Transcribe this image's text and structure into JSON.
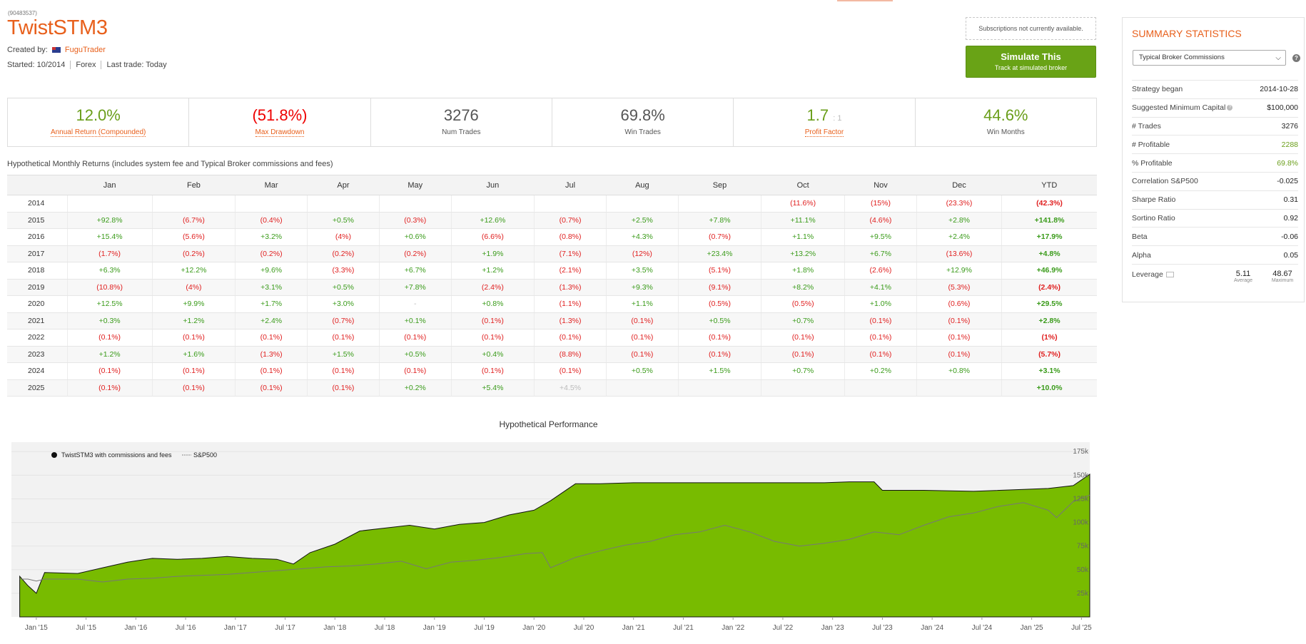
{
  "system": {
    "id": "(90483537)",
    "title": "TwistSTM3",
    "created_by_label": "Created by:",
    "creator": "FuguTrader",
    "started": "Started: 10/2014",
    "market": "Forex",
    "last_trade": "Last trade: Today"
  },
  "actions": {
    "subscriptions_note": "Subscriptions not currently available.",
    "simulate_label": "Simulate This",
    "simulate_sub": "Track at simulated broker"
  },
  "stats": [
    {
      "value": "12.0%",
      "label": "Annual Return (Compounded)",
      "color": "green",
      "link": true
    },
    {
      "value": "(51.8%)",
      "label": "Max Drawdown",
      "color": "red",
      "link": true
    },
    {
      "value": "3276",
      "label": "Num Trades",
      "color": "grey",
      "link": false
    },
    {
      "value": "69.8%",
      "label": "Win Trades",
      "color": "grey",
      "link": false
    },
    {
      "value": "1.7",
      "suffix": ": 1",
      "label": "Profit Factor",
      "color": "green",
      "link": true
    },
    {
      "value": "44.6%",
      "label": "Win Months",
      "color": "green",
      "link": false
    }
  ],
  "monthly": {
    "caption": "Hypothetical Monthly Returns (includes system fee and Typical Broker commissions and fees)",
    "headers": [
      "",
      "Jan",
      "Feb",
      "Mar",
      "Apr",
      "May",
      "Jun",
      "Jul",
      "Aug",
      "Sep",
      "Oct",
      "Nov",
      "Dec",
      "YTD"
    ],
    "rows": [
      [
        "2014",
        "",
        "",
        "",
        "",
        "",
        "",
        "",
        "",
        "",
        "(11.6%)",
        "(15%)",
        "(23.3%)",
        "(42.3%)"
      ],
      [
        "2015",
        "+92.8%",
        "(6.7%)",
        "(0.4%)",
        "+0.5%",
        "(0.3%)",
        "+12.6%",
        "(0.7%)",
        "+2.5%",
        "+7.8%",
        "+11.1%",
        "(4.6%)",
        "+2.8%",
        "+141.8%"
      ],
      [
        "2016",
        "+15.4%",
        "(5.6%)",
        "+3.2%",
        "(4%)",
        "+0.6%",
        "(6.6%)",
        "(0.8%)",
        "+4.3%",
        "(0.7%)",
        "+1.1%",
        "+9.5%",
        "+2.4%",
        "+17.9%"
      ],
      [
        "2017",
        "(1.7%)",
        "(0.2%)",
        "(0.2%)",
        "(0.2%)",
        "(0.2%)",
        "+1.9%",
        "(7.1%)",
        "(12%)",
        "+23.4%",
        "+13.2%",
        "+6.7%",
        "(13.6%)",
        "+4.8%"
      ],
      [
        "2018",
        "+6.3%",
        "+12.2%",
        "+9.6%",
        "(3.3%)",
        "+6.7%",
        "+1.2%",
        "(2.1%)",
        "+3.5%",
        "(5.1%)",
        "+1.8%",
        "(2.6%)",
        "+12.9%",
        "+46.9%"
      ],
      [
        "2019",
        "(10.8%)",
        "(4%)",
        "+3.1%",
        "+0.5%",
        "+7.8%",
        "(2.4%)",
        "(1.3%)",
        "+9.3%",
        "(9.1%)",
        "+8.2%",
        "+4.1%",
        "(5.3%)",
        "(2.4%)"
      ],
      [
        "2020",
        "+12.5%",
        "+9.9%",
        "+1.7%",
        "+3.0%",
        "-",
        "+0.8%",
        "(1.1%)",
        "+1.1%",
        "(0.5%)",
        "(0.5%)",
        "+1.0%",
        "(0.6%)",
        "+29.5%"
      ],
      [
        "2021",
        "+0.3%",
        "+1.2%",
        "+2.4%",
        "(0.7%)",
        "+0.1%",
        "(0.1%)",
        "(1.3%)",
        "(0.1%)",
        "+0.5%",
        "+0.7%",
        "(0.1%)",
        "(0.1%)",
        "+2.8%"
      ],
      [
        "2022",
        "(0.1%)",
        "(0.1%)",
        "(0.1%)",
        "(0.1%)",
        "(0.1%)",
        "(0.1%)",
        "(0.1%)",
        "(0.1%)",
        "(0.1%)",
        "(0.1%)",
        "(0.1%)",
        "(0.1%)",
        "(1%)"
      ],
      [
        "2023",
        "+1.2%",
        "+1.6%",
        "(1.3%)",
        "+1.5%",
        "+0.5%",
        "+0.4%",
        "(8.8%)",
        "(0.1%)",
        "(0.1%)",
        "(0.1%)",
        "(0.1%)",
        "(0.1%)",
        "(5.7%)"
      ],
      [
        "2024",
        "(0.1%)",
        "(0.1%)",
        "(0.1%)",
        "(0.1%)",
        "(0.1%)",
        "(0.1%)",
        "(0.1%)",
        "+0.5%",
        "+1.5%",
        "+0.7%",
        "+0.2%",
        "+0.8%",
        "+3.1%"
      ],
      [
        "2025",
        "(0.1%)",
        "(0.1%)",
        "(0.1%)",
        "(0.1%)",
        "+0.2%",
        "+5.4%",
        "+4.5%",
        "",
        "",
        "",
        "",
        "",
        "+10.0%"
      ]
    ],
    "pending_cells": [
      [
        11,
        7
      ]
    ]
  },
  "summary": {
    "title": "SUMMARY STATISTICS",
    "broker_select": "Typical Broker Commissions",
    "rows": [
      {
        "k": "Strategy began",
        "v": "2014-10-28"
      },
      {
        "k": "Suggested Minimum Capital",
        "v": "$100,000",
        "help": true
      },
      {
        "k": "# Trades",
        "v": "3276"
      },
      {
        "k": "# Profitable",
        "v": "2288",
        "green": true
      },
      {
        "k": "% Profitable",
        "v": "69.8%",
        "green": true
      },
      {
        "k": "Correlation S&P500",
        "v": "-0.025"
      },
      {
        "k": "Sharpe Ratio",
        "v": "0.31"
      },
      {
        "k": "Sortino Ratio",
        "v": "0.92"
      },
      {
        "k": "Beta",
        "v": "-0.06"
      },
      {
        "k": "Alpha",
        "v": "0.05"
      }
    ],
    "leverage": {
      "label": "Leverage",
      "average": "5.11",
      "average_label": "Average",
      "maximum": "48.67",
      "maximum_label": "Maximum"
    }
  },
  "chart_data": {
    "type": "area",
    "title": "Hypothetical Performance",
    "series": [
      {
        "name": "TwistSTM3 with commissions and fees",
        "color": "#78bb00",
        "points": [
          [
            "2014-11",
            43000
          ],
          [
            "2014-12",
            33000
          ],
          [
            "2015-01",
            25000
          ],
          [
            "2015-02",
            47000
          ],
          [
            "2015-06",
            46000
          ],
          [
            "2015-09",
            52000
          ],
          [
            "2015-12",
            58000
          ],
          [
            "2016-03",
            62000
          ],
          [
            "2016-06",
            61000
          ],
          [
            "2016-09",
            62000
          ],
          [
            "2016-12",
            64000
          ],
          [
            "2017-03",
            62000
          ],
          [
            "2017-06",
            61000
          ],
          [
            "2017-08",
            56000
          ],
          [
            "2017-10",
            68000
          ],
          [
            "2018-01",
            77000
          ],
          [
            "2018-04",
            91000
          ],
          [
            "2018-07",
            94000
          ],
          [
            "2018-10",
            97000
          ],
          [
            "2019-01",
            93000
          ],
          [
            "2019-04",
            98000
          ],
          [
            "2019-07",
            100000
          ],
          [
            "2019-10",
            108000
          ],
          [
            "2020-01",
            113000
          ],
          [
            "2020-03",
            123000
          ],
          [
            "2020-06",
            141000
          ],
          [
            "2020-09",
            141000
          ],
          [
            "2021-01",
            142000
          ],
          [
            "2021-06",
            142000
          ],
          [
            "2021-12",
            142000
          ],
          [
            "2022-06",
            142000
          ],
          [
            "2022-12",
            142000
          ],
          [
            "2023-03",
            143000
          ],
          [
            "2023-06",
            143000
          ],
          [
            "2023-07",
            134000
          ],
          [
            "2023-12",
            134000
          ],
          [
            "2024-06",
            133000
          ],
          [
            "2024-12",
            135000
          ],
          [
            "2025-03",
            136000
          ],
          [
            "2025-06",
            139000
          ],
          [
            "2025-08",
            151000
          ]
        ]
      },
      {
        "name": "S&P500",
        "color": "#777777",
        "points": [
          [
            "2014-11",
            40000
          ],
          [
            "2014-12",
            40000
          ],
          [
            "2015-01",
            38000
          ],
          [
            "2015-02",
            40000
          ],
          [
            "2015-06",
            40000
          ],
          [
            "2015-09",
            37000
          ],
          [
            "2015-12",
            40000
          ],
          [
            "2016-03",
            41000
          ],
          [
            "2016-06",
            43000
          ],
          [
            "2016-09",
            44000
          ],
          [
            "2016-12",
            45000
          ],
          [
            "2017-03",
            47000
          ],
          [
            "2017-06",
            49000
          ],
          [
            "2017-09",
            51000
          ],
          [
            "2017-12",
            53000
          ],
          [
            "2018-03",
            54000
          ],
          [
            "2018-06",
            56000
          ],
          [
            "2018-09",
            59000
          ],
          [
            "2018-12",
            51000
          ],
          [
            "2019-03",
            58000
          ],
          [
            "2019-06",
            60000
          ],
          [
            "2019-09",
            63000
          ],
          [
            "2019-12",
            67000
          ],
          [
            "2020-02",
            68000
          ],
          [
            "2020-03",
            52000
          ],
          [
            "2020-06",
            63000
          ],
          [
            "2020-09",
            70000
          ],
          [
            "2020-12",
            76000
          ],
          [
            "2021-03",
            80000
          ],
          [
            "2021-06",
            87000
          ],
          [
            "2021-09",
            90000
          ],
          [
            "2021-12",
            97000
          ],
          [
            "2022-03",
            90000
          ],
          [
            "2022-06",
            80000
          ],
          [
            "2022-09",
            75000
          ],
          [
            "2022-12",
            78000
          ],
          [
            "2023-03",
            82000
          ],
          [
            "2023-06",
            90000
          ],
          [
            "2023-09",
            87000
          ],
          [
            "2023-12",
            97000
          ],
          [
            "2024-03",
            106000
          ],
          [
            "2024-06",
            110000
          ],
          [
            "2024-09",
            117000
          ],
          [
            "2024-12",
            121000
          ],
          [
            "2025-03",
            113000
          ],
          [
            "2025-04",
            105000
          ],
          [
            "2025-06",
            122000
          ],
          [
            "2025-08",
            129000
          ]
        ]
      }
    ],
    "x_ticks": [
      "Jan '15",
      "Jul '15",
      "Jan '16",
      "Jul '16",
      "Jan '17",
      "Jul '17",
      "Jan '18",
      "Jul '18",
      "Jan '19",
      "Jul '19",
      "Jan '20",
      "Jul '20",
      "Jan '21",
      "Jul '21",
      "Jan '22",
      "Jul '22",
      "Jan '23",
      "Jul '23",
      "Jan '24",
      "Jul '24",
      "Jan '25",
      "Jul '25"
    ],
    "y_ticks": [
      "25k",
      "50k",
      "75k",
      "100k",
      "125k",
      "150k",
      "175k"
    ],
    "ylim": [
      0,
      185000
    ],
    "xlim": [
      "2014-10",
      "2025-08"
    ],
    "legend": "top-left",
    "grid": true
  }
}
